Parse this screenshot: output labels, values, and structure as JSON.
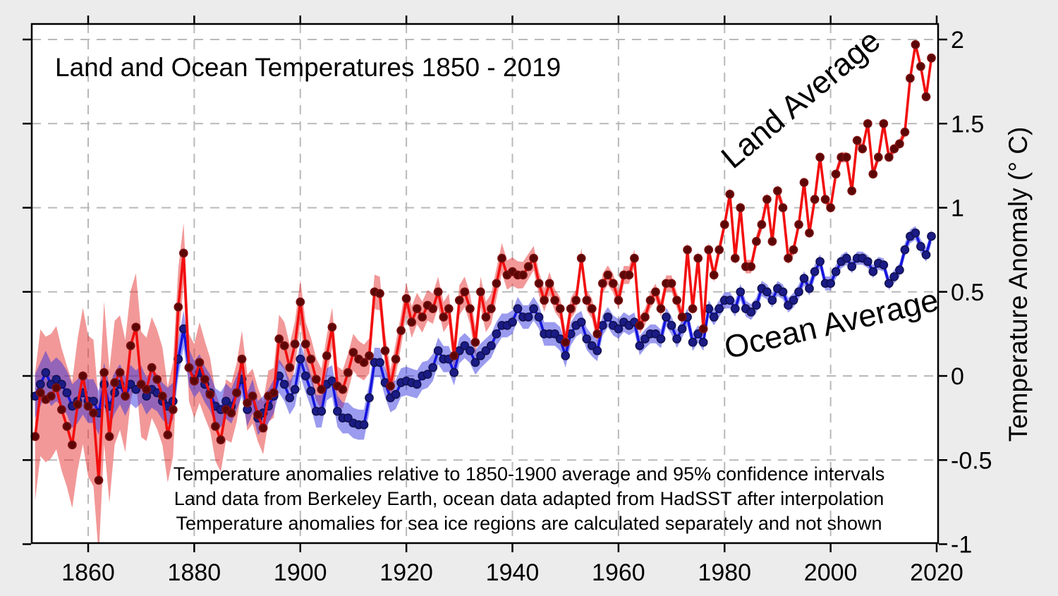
{
  "page": {
    "background": "#ECECEC",
    "plot_background": "#FFFFFF",
    "grid_color": "#B9B9B9"
  },
  "chart_data": {
    "type": "line",
    "title": "Land and Ocean Temperatures 1850 - 2019",
    "ylabel": "Temperature Anomaly (° C)",
    "xlim": [
      1849.3,
      2020.3
    ],
    "ylim": [
      -1,
      2.08
    ],
    "x_ticks": [
      1860,
      1880,
      1900,
      1920,
      1940,
      1960,
      1980,
      2000,
      2020
    ],
    "y_ticks": [
      -1,
      -0.5,
      0,
      0.5,
      1,
      1.5,
      2
    ],
    "grid": "dashed",
    "years_start": 1850,
    "years_end": 2019,
    "annotations": [
      "Temperature anomalies relative to 1850-1900 average and 95% confidence intervals",
      "Land data from Berkeley Earth, ocean data adapted from HadSST after interpolation",
      "Temperature anomalies for sea ice regions are calculated separately and not shown"
    ],
    "series": [
      {
        "id": "land",
        "name": "Land Average",
        "label_color": "#A51212",
        "line_color": "#F20E0E",
        "marker_color": "#5C0707",
        "marker_edge": "#7C1010",
        "band_color": "#E63232",
        "band_opacity": 0.5,
        "values": [
          -0.36,
          -0.1,
          -0.14,
          -0.12,
          -0.07,
          -0.2,
          -0.3,
          -0.41,
          -0.17,
          0.0,
          -0.18,
          -0.22,
          -0.62,
          0.02,
          -0.36,
          -0.04,
          0.02,
          -0.12,
          0.18,
          0.29,
          -0.05,
          -0.08,
          0.05,
          -0.02,
          -0.12,
          -0.35,
          -0.2,
          0.41,
          0.73,
          0.05,
          -0.03,
          0.08,
          -0.02,
          -0.11,
          -0.3,
          -0.38,
          -0.2,
          -0.22,
          -0.1,
          0.1,
          -0.16,
          -0.12,
          -0.23,
          -0.31,
          -0.12,
          -0.1,
          0.22,
          0.18,
          0.05,
          0.19,
          0.44,
          0.19,
          0.1,
          -0.02,
          -0.08,
          0.12,
          0.29,
          -0.06,
          -0.08,
          0.02,
          0.14,
          0.1,
          0.08,
          0.12,
          0.5,
          0.49,
          0.15,
          -0.06,
          0.1,
          0.27,
          0.46,
          0.32,
          0.4,
          0.35,
          0.42,
          0.4,
          0.5,
          0.35,
          0.4,
          0.12,
          0.45,
          0.5,
          0.4,
          0.2,
          0.5,
          0.35,
          0.4,
          0.55,
          0.7,
          0.6,
          0.62,
          0.6,
          0.6,
          0.65,
          0.7,
          0.55,
          0.45,
          0.55,
          0.45,
          0.4,
          0.2,
          0.4,
          0.45,
          0.7,
          0.45,
          0.4,
          0.25,
          0.55,
          0.6,
          0.55,
          0.45,
          0.6,
          0.6,
          0.7,
          0.3,
          0.35,
          0.45,
          0.5,
          0.4,
          0.55,
          0.55,
          0.45,
          0.35,
          0.75,
          0.4,
          0.7,
          0.28,
          0.75,
          0.6,
          0.75,
          0.9,
          1.08,
          0.7,
          1.0,
          0.65,
          0.65,
          0.8,
          0.9,
          1.05,
          0.8,
          1.1,
          1.0,
          0.7,
          0.75,
          0.9,
          1.15,
          0.85,
          1.05,
          1.3,
          1.05,
          1.0,
          1.2,
          1.3,
          1.3,
          1.1,
          1.4,
          1.35,
          1.5,
          1.2,
          1.3,
          1.5,
          1.3,
          1.35,
          1.38,
          1.45,
          1.77,
          1.97,
          1.84,
          1.66,
          1.89
        ],
        "ci_anchors": [
          [
            1850,
            0.38
          ],
          [
            1856,
            0.36
          ],
          [
            1862,
            0.45
          ],
          [
            1866,
            0.34
          ],
          [
            1872,
            0.3
          ],
          [
            1876,
            0.28
          ],
          [
            1878,
            0.18
          ],
          [
            1881,
            0.24
          ],
          [
            1886,
            0.18
          ],
          [
            1892,
            0.16
          ],
          [
            1897,
            0.14
          ],
          [
            1905,
            0.12
          ],
          [
            1915,
            0.1
          ],
          [
            1925,
            0.09
          ],
          [
            1938,
            0.09
          ],
          [
            1945,
            0.07
          ],
          [
            1955,
            0.06
          ],
          [
            1965,
            0.05
          ],
          [
            1975,
            0.045
          ],
          [
            1985,
            0.04
          ],
          [
            1995,
            0.035
          ],
          [
            2005,
            0.03
          ],
          [
            2019,
            0.03
          ]
        ]
      },
      {
        "id": "ocean",
        "name": "Ocean Average",
        "label_color": "#0F0FA8",
        "line_color": "#1414DC",
        "marker_color": "#1B1B86",
        "marker_edge": "#10104E",
        "band_color": "#2A2ADC",
        "band_opacity": 0.47,
        "values": [
          -0.12,
          -0.05,
          0.02,
          -0.05,
          -0.02,
          -0.05,
          -0.1,
          -0.18,
          -0.15,
          -0.1,
          -0.15,
          -0.15,
          -0.22,
          -0.05,
          -0.18,
          -0.1,
          -0.05,
          -0.12,
          -0.05,
          -0.08,
          -0.05,
          -0.12,
          -0.08,
          -0.1,
          -0.15,
          -0.18,
          -0.15,
          0.1,
          0.28,
          0.05,
          -0.02,
          0.02,
          -0.05,
          -0.1,
          -0.18,
          -0.2,
          -0.15,
          -0.18,
          -0.1,
          -0.02,
          -0.2,
          -0.12,
          -0.25,
          -0.22,
          -0.18,
          -0.12,
          0.0,
          -0.05,
          -0.13,
          -0.08,
          0.1,
          0.0,
          -0.09,
          -0.21,
          -0.21,
          -0.05,
          -0.03,
          -0.21,
          -0.25,
          -0.25,
          -0.28,
          -0.29,
          -0.29,
          -0.13,
          0.08,
          0.08,
          -0.04,
          -0.13,
          -0.11,
          -0.04,
          -0.03,
          -0.04,
          -0.05,
          0.0,
          0.01,
          0.05,
          0.15,
          0.1,
          0.1,
          0.02,
          0.15,
          0.18,
          0.15,
          0.08,
          0.12,
          0.15,
          0.18,
          0.25,
          0.3,
          0.3,
          0.32,
          0.4,
          0.35,
          0.35,
          0.4,
          0.35,
          0.25,
          0.25,
          0.25,
          0.22,
          0.12,
          0.25,
          0.3,
          0.32,
          0.22,
          0.18,
          0.15,
          0.3,
          0.35,
          0.3,
          0.28,
          0.32,
          0.3,
          0.32,
          0.18,
          0.22,
          0.25,
          0.25,
          0.22,
          0.35,
          0.3,
          0.22,
          0.28,
          0.35,
          0.2,
          0.25,
          0.2,
          0.4,
          0.35,
          0.4,
          0.45,
          0.45,
          0.4,
          0.5,
          0.4,
          0.38,
          0.42,
          0.52,
          0.5,
          0.45,
          0.52,
          0.5,
          0.42,
          0.45,
          0.5,
          0.58,
          0.52,
          0.62,
          0.68,
          0.55,
          0.55,
          0.62,
          0.68,
          0.7,
          0.65,
          0.7,
          0.7,
          0.68,
          0.62,
          0.67,
          0.66,
          0.55,
          0.59,
          0.63,
          0.75,
          0.83,
          0.85,
          0.77,
          0.72,
          0.83
        ],
        "ci_anchors": [
          [
            1850,
            0.13
          ],
          [
            1862,
            0.13
          ],
          [
            1870,
            0.11
          ],
          [
            1880,
            0.11
          ],
          [
            1890,
            0.1
          ],
          [
            1900,
            0.1
          ],
          [
            1910,
            0.09
          ],
          [
            1920,
            0.085
          ],
          [
            1930,
            0.075
          ],
          [
            1940,
            0.07
          ],
          [
            1950,
            0.07
          ],
          [
            1958,
            0.06
          ],
          [
            1968,
            0.055
          ],
          [
            1978,
            0.05
          ],
          [
            1988,
            0.045
          ],
          [
            1998,
            0.042
          ],
          [
            2008,
            0.038
          ],
          [
            2019,
            0.042
          ]
        ]
      }
    ]
  }
}
